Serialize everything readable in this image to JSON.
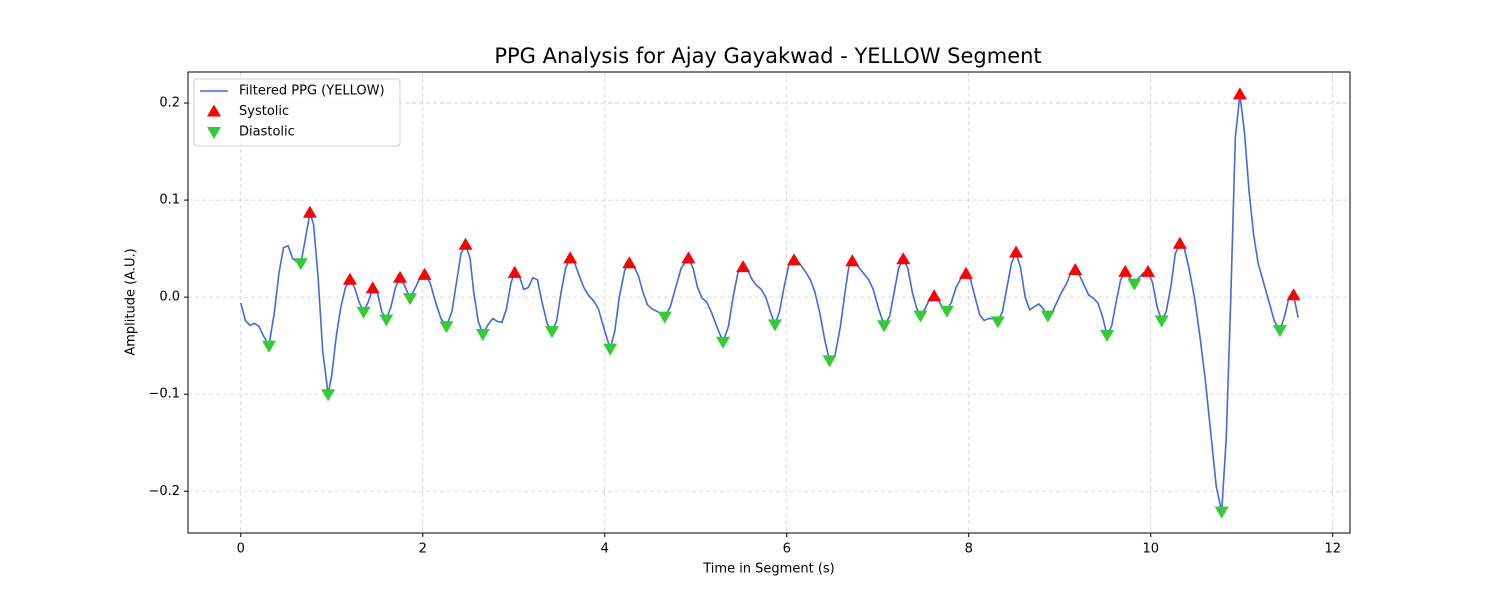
{
  "chart_data": {
    "type": "line_scatter",
    "title": "PPG Analysis for Ajay Gayakwad - YELLOW Segment",
    "xlabel": "Time in Segment (s)",
    "ylabel": "Amplitude (A.U.)",
    "xlim": [
      -0.58,
      12.19
    ],
    "ylim": [
      -0.243,
      0.232
    ],
    "xticks": [
      0,
      2,
      4,
      6,
      8,
      10,
      12
    ],
    "yticks": [
      {
        "value": -0.2,
        "label": "−0.2"
      },
      {
        "value": -0.1,
        "label": "−0.1"
      },
      {
        "value": 0.0,
        "label": "0.0"
      },
      {
        "value": 0.1,
        "label": "0.1"
      },
      {
        "value": 0.2,
        "label": "0.2"
      }
    ],
    "grid": true,
    "legend": "upper left",
    "series": [
      {
        "name": "Filtered PPG (YELLOW)",
        "kind": "line",
        "color": "#4169e1",
        "x": [
          0.0,
          0.05,
          0.1,
          0.15,
          0.2,
          0.25,
          0.31,
          0.37,
          0.42,
          0.47,
          0.52,
          0.57,
          0.62,
          0.66,
          0.71,
          0.76,
          0.8,
          0.85,
          0.9,
          0.96,
          1.0,
          1.05,
          1.1,
          1.15,
          1.2,
          1.25,
          1.3,
          1.35,
          1.4,
          1.45,
          1.5,
          1.55,
          1.6,
          1.65,
          1.7,
          1.75,
          1.8,
          1.86,
          1.92,
          1.97,
          2.02,
          2.08,
          2.14,
          2.2,
          2.26,
          2.32,
          2.37,
          2.42,
          2.47,
          2.52,
          2.56,
          2.61,
          2.66,
          2.72,
          2.77,
          2.82,
          2.87,
          2.92,
          2.97,
          3.01,
          3.06,
          3.11,
          3.16,
          3.21,
          3.26,
          3.31,
          3.37,
          3.42,
          3.47,
          3.52,
          3.57,
          3.62,
          3.67,
          3.72,
          3.77,
          3.82,
          3.88,
          3.93,
          4.0,
          4.06,
          4.11,
          4.16,
          4.22,
          4.27,
          4.32,
          4.37,
          4.42,
          4.47,
          4.52,
          4.58,
          4.66,
          4.72,
          4.78,
          4.84,
          4.92,
          4.97,
          5.02,
          5.07,
          5.12,
          5.17,
          5.23,
          5.3,
          5.36,
          5.41,
          5.47,
          5.52,
          5.57,
          5.62,
          5.67,
          5.72,
          5.77,
          5.82,
          5.87,
          5.92,
          5.97,
          6.02,
          6.08,
          6.14,
          6.2,
          6.26,
          6.31,
          6.36,
          6.42,
          6.47,
          6.53,
          6.59,
          6.64,
          6.68,
          6.72,
          6.78,
          6.84,
          6.9,
          6.95,
          7.01,
          7.07,
          7.13,
          7.18,
          7.23,
          7.28,
          7.33,
          7.38,
          7.43,
          7.47,
          7.52,
          7.57,
          7.62,
          7.67,
          7.72,
          7.76,
          7.81,
          7.86,
          7.92,
          7.97,
          8.02,
          8.07,
          8.12,
          8.17,
          8.22,
          8.27,
          8.32,
          8.37,
          8.42,
          8.47,
          8.52,
          8.57,
          8.62,
          8.67,
          8.72,
          8.77,
          8.82,
          8.87,
          8.92,
          8.97,
          9.02,
          9.08,
          9.12,
          9.17,
          9.22,
          9.27,
          9.32,
          9.37,
          9.42,
          9.47,
          9.52,
          9.57,
          9.62,
          9.67,
          9.72,
          9.77,
          9.82,
          9.87,
          9.92,
          9.97,
          10.02,
          10.07,
          10.12,
          10.17,
          10.22,
          10.27,
          10.32,
          10.37,
          10.42,
          10.48,
          10.54,
          10.6,
          10.66,
          10.72,
          10.78,
          10.83,
          10.88,
          10.93,
          10.98,
          11.03,
          11.08,
          11.13,
          11.18,
          11.24,
          11.3,
          11.36,
          11.42,
          11.47,
          11.52,
          11.57,
          11.62
        ],
        "values": [
          -0.006,
          -0.024,
          -0.029,
          -0.027,
          -0.03,
          -0.04,
          -0.05,
          -0.015,
          0.025,
          0.051,
          0.053,
          0.04,
          0.036,
          0.035,
          0.06,
          0.087,
          0.075,
          0.02,
          -0.055,
          -0.1,
          -0.08,
          -0.04,
          -0.01,
          0.01,
          0.018,
          0.01,
          -0.005,
          -0.015,
          -0.005,
          0.009,
          0.005,
          -0.015,
          -0.023,
          -0.01,
          0.01,
          0.02,
          0.012,
          -0.001,
          0.01,
          0.02,
          0.023,
          0.015,
          -0.005,
          -0.022,
          -0.03,
          -0.015,
          0.015,
          0.045,
          0.054,
          0.04,
          0.005,
          -0.025,
          -0.038,
          -0.028,
          -0.022,
          -0.025,
          -0.026,
          -0.012,
          0.015,
          0.025,
          0.022,
          0.008,
          0.01,
          0.02,
          0.018,
          -0.005,
          -0.028,
          -0.035,
          -0.025,
          0.005,
          0.03,
          0.04,
          0.035,
          0.022,
          0.01,
          0.002,
          -0.004,
          -0.012,
          -0.035,
          -0.053,
          -0.035,
          0.0,
          0.028,
          0.035,
          0.032,
          0.022,
          0.005,
          -0.008,
          -0.012,
          -0.015,
          -0.02,
          -0.01,
          0.01,
          0.03,
          0.04,
          0.03,
          0.01,
          -0.001,
          -0.005,
          -0.015,
          -0.03,
          -0.046,
          -0.03,
          0.0,
          0.028,
          0.031,
          0.028,
          0.018,
          0.012,
          0.008,
          0.0,
          -0.015,
          -0.028,
          -0.015,
          0.01,
          0.032,
          0.038,
          0.035,
          0.027,
          0.018,
          0.005,
          -0.015,
          -0.045,
          -0.065,
          -0.06,
          -0.03,
          0.005,
          0.03,
          0.037,
          0.032,
          0.025,
          0.018,
          0.008,
          -0.012,
          -0.029,
          -0.02,
          0.005,
          0.03,
          0.039,
          0.03,
          0.005,
          -0.012,
          -0.019,
          -0.012,
          -0.002,
          0.001,
          -0.004,
          -0.012,
          -0.014,
          -0.005,
          0.01,
          0.02,
          0.024,
          0.018,
          0.0,
          -0.018,
          -0.024,
          -0.022,
          -0.022,
          -0.025,
          -0.015,
          0.01,
          0.035,
          0.046,
          0.03,
          0.0,
          -0.013,
          -0.01,
          -0.007,
          -0.012,
          -0.019,
          -0.015,
          -0.005,
          0.005,
          0.015,
          0.025,
          0.028,
          0.022,
          0.012,
          0.002,
          -0.001,
          -0.006,
          -0.02,
          -0.039,
          -0.03,
          -0.005,
          0.018,
          0.026,
          0.02,
          0.014,
          0.02,
          0.025,
          0.026,
          0.015,
          -0.01,
          -0.024,
          -0.015,
          0.01,
          0.045,
          0.055,
          0.05,
          0.03,
          0.0,
          -0.04,
          -0.085,
          -0.14,
          -0.195,
          -0.221,
          -0.145,
          0.0,
          0.165,
          0.209,
          0.17,
          0.11,
          0.065,
          0.035,
          0.015,
          -0.005,
          -0.025,
          -0.034,
          -0.02,
          0.0,
          0.002,
          -0.021
        ]
      },
      {
        "name": "Systolic",
        "kind": "scatter",
        "marker": "triangle-up",
        "color": "#ff0000",
        "x": [
          0.76,
          1.2,
          1.45,
          1.75,
          2.02,
          2.47,
          3.01,
          3.62,
          4.27,
          4.92,
          5.52,
          6.08,
          6.72,
          7.28,
          7.62,
          7.97,
          8.52,
          9.17,
          9.72,
          9.97,
          10.32,
          10.98,
          11.57
        ],
        "values": [
          0.087,
          0.018,
          0.009,
          0.02,
          0.023,
          0.054,
          0.025,
          0.04,
          0.035,
          0.04,
          0.031,
          0.038,
          0.037,
          0.039,
          0.001,
          0.024,
          0.046,
          0.028,
          0.026,
          0.026,
          0.055,
          0.209,
          0.002
        ]
      },
      {
        "name": "Diastolic",
        "kind": "scatter",
        "marker": "triangle-down",
        "color": "#32cd32",
        "x": [
          0.31,
          0.66,
          0.96,
          1.35,
          1.6,
          1.86,
          2.26,
          2.66,
          3.42,
          4.06,
          4.66,
          5.3,
          5.87,
          6.47,
          7.07,
          7.47,
          7.76,
          8.32,
          8.87,
          9.52,
          9.82,
          10.12,
          10.78,
          11.42
        ],
        "values": [
          -0.05,
          0.035,
          -0.1,
          -0.015,
          -0.023,
          -0.001,
          -0.03,
          -0.038,
          -0.035,
          -0.053,
          -0.02,
          -0.046,
          -0.028,
          -0.065,
          -0.029,
          -0.019,
          -0.014,
          -0.025,
          -0.019,
          -0.039,
          0.014,
          -0.024,
          -0.221,
          -0.034
        ]
      }
    ]
  }
}
